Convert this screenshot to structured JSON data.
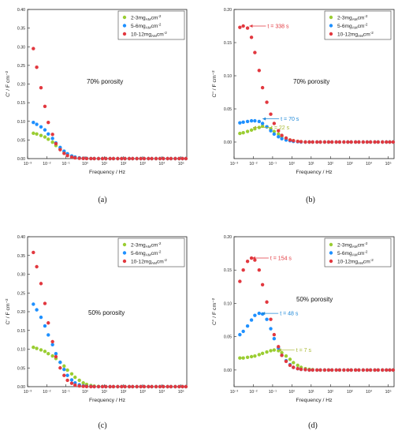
{
  "chart_data": [
    {
      "type": "scatter",
      "panel_label": "(a)",
      "xlabel": "Frequency / Hz",
      "ylabel": "C' / F cm⁻²",
      "xscale": "log",
      "xlim": [
        0.001,
        200000
      ],
      "ylim": [
        0,
        0.4
      ],
      "x_ticks": [
        0.001,
        0.01,
        0.1,
        1,
        10,
        100,
        1000,
        10000,
        100000
      ],
      "x_tick_labels": [
        "10⁻³",
        "10⁻²",
        "10⁻¹",
        "10⁰",
        "10¹",
        "10²",
        "10³",
        "10⁴",
        "10⁵"
      ],
      "y_ticks": [
        0,
        0.05,
        0.1,
        0.15,
        0.2,
        0.25,
        0.3,
        0.35,
        0.4
      ],
      "y_tick_labels": [
        "0.00",
        "0.05",
        "0.10",
        "0.15",
        "0.20",
        "0.25",
        "0.30",
        "0.35",
        "0.40"
      ],
      "annotation": "70% porosity",
      "legend_position": "top-right",
      "x": [
        0.002,
        0.003,
        0.005,
        0.008,
        0.012,
        0.02,
        0.03,
        0.05,
        0.08,
        0.12,
        0.2,
        0.3,
        0.5,
        0.8,
        1.2,
        2,
        3,
        5,
        8,
        12,
        20,
        30,
        50,
        80,
        120,
        200,
        300,
        500,
        800,
        1200,
        2000,
        3000,
        5000,
        8000,
        12000,
        20000,
        30000,
        50000,
        80000,
        120000,
        180000
      ],
      "series": [
        {
          "name": "2-3mg",
          "values": [
            0.068,
            0.066,
            0.062,
            0.058,
            0.052,
            0.044,
            0.035,
            0.026,
            0.018,
            0.012,
            0.007,
            0.004,
            0.002,
            0.001,
            0.0005,
            0.0002,
            0.0001,
            0,
            0,
            0,
            0,
            0,
            0,
            0,
            0,
            0,
            0,
            0,
            0,
            0,
            0,
            0,
            0,
            0,
            0,
            0,
            0,
            0,
            0,
            0,
            0
          ]
        },
        {
          "name": "5-6mg",
          "values": [
            0.097,
            0.092,
            0.085,
            0.077,
            0.066,
            0.054,
            0.042,
            0.03,
            0.02,
            0.013,
            0.007,
            0.004,
            0.002,
            0.001,
            0.0005,
            0.0002,
            0.0001,
            0,
            0,
            0,
            0,
            0,
            0,
            0,
            0,
            0,
            0,
            0,
            0,
            0,
            0,
            0,
            0,
            0,
            0,
            0,
            0,
            0,
            0,
            0,
            0
          ]
        },
        {
          "name": "10-12mg",
          "values": [
            0.295,
            0.245,
            0.19,
            0.14,
            0.097,
            0.065,
            0.04,
            0.024,
            0.014,
            0.008,
            0.004,
            0.002,
            0.001,
            0.0005,
            0.0002,
            0.0001,
            0,
            0,
            0,
            0,
            0,
            0,
            0,
            0,
            0,
            0,
            0,
            0,
            0,
            0,
            0,
            0,
            0,
            0,
            0,
            0,
            0,
            0,
            0,
            0,
            0
          ]
        }
      ]
    },
    {
      "type": "scatter",
      "panel_label": "(b)",
      "xlabel": "Frequency / Hz",
      "ylabel": "C\" / F cm⁻²",
      "xscale": "log",
      "xlim": [
        0.001,
        200000
      ],
      "ylim": [
        -0.025,
        0.2
      ],
      "x_ticks": [
        0.001,
        0.01,
        0.1,
        1,
        10,
        100,
        1000,
        10000,
        100000
      ],
      "x_tick_labels": [
        "10⁻³",
        "10⁻²",
        "10⁻¹",
        "10⁰",
        "10¹",
        "10²",
        "10³",
        "10⁴",
        "10⁵"
      ],
      "y_ticks": [
        0,
        0.05,
        0.1,
        0.15,
        0.2
      ],
      "y_tick_labels": [
        "0.00",
        "0.05",
        "0.10",
        "0.15",
        "0.20"
      ],
      "annotation": "70% porosity",
      "legend_position": "top-right",
      "time_labels": [
        {
          "text": "t = 338 s",
          "series": "10-12mg",
          "x": 0.0047,
          "y": 0.175
        },
        {
          "text": "t = 70 s",
          "series": "5-6mg",
          "x": 0.0227,
          "y": 0.035
        },
        {
          "text": "t = 22 s",
          "series": "2-3mg",
          "x": 0.0072,
          "y": 0.022
        }
      ],
      "x": [
        0.002,
        0.003,
        0.005,
        0.008,
        0.012,
        0.02,
        0.03,
        0.05,
        0.08,
        0.12,
        0.2,
        0.3,
        0.5,
        0.8,
        1.2,
        2,
        3,
        5,
        8,
        12,
        20,
        30,
        50,
        80,
        120,
        200,
        300,
        500,
        800,
        1200,
        2000,
        3000,
        5000,
        8000,
        12000,
        20000,
        30000,
        50000,
        80000,
        120000,
        180000
      ],
      "series": [
        {
          "name": "2-3mg",
          "values": [
            0.013,
            0.014,
            0.016,
            0.018,
            0.02,
            0.022,
            0.024,
            0.023,
            0.02,
            0.016,
            0.012,
            0.008,
            0.005,
            0.003,
            0.002,
            0.001,
            0.0005,
            0,
            0,
            0,
            0,
            0,
            0,
            0,
            0,
            0,
            0,
            0,
            0,
            0,
            0,
            0,
            0,
            0,
            0,
            0,
            0,
            0,
            0,
            0,
            0
          ]
        },
        {
          "name": "5-6mg",
          "values": [
            0.029,
            0.03,
            0.031,
            0.032,
            0.032,
            0.031,
            0.028,
            0.023,
            0.017,
            0.012,
            0.008,
            0.005,
            0.003,
            0.002,
            0.001,
            0.0005,
            0,
            0,
            0,
            0,
            0,
            0,
            0,
            0,
            0,
            0,
            0,
            0,
            0,
            0,
            0,
            0,
            0,
            0,
            0,
            0,
            0,
            0,
            0,
            0,
            0
          ]
        },
        {
          "name": "10-12mg",
          "values": [
            0.173,
            0.175,
            0.172,
            0.158,
            0.135,
            0.108,
            0.082,
            0.06,
            0.042,
            0.028,
            0.017,
            0.01,
            0.006,
            0.003,
            0.002,
            0.001,
            0.0005,
            0,
            0,
            0,
            0,
            0,
            0,
            0,
            0,
            0,
            0,
            0,
            0,
            0,
            0,
            0,
            0,
            0,
            0,
            0,
            0,
            0,
            0,
            0,
            0
          ]
        }
      ]
    },
    {
      "type": "scatter",
      "panel_label": "(c)",
      "xlabel": "Frequency / Hz",
      "ylabel": "C' / F cm⁻²",
      "xscale": "log",
      "xlim": [
        0.001,
        200000
      ],
      "ylim": [
        0,
        0.4
      ],
      "x_ticks": [
        0.001,
        0.01,
        0.1,
        1,
        10,
        100,
        1000,
        10000,
        100000
      ],
      "x_tick_labels": [
        "10⁻³",
        "10⁻²",
        "10⁻¹",
        "10⁰",
        "10¹",
        "10²",
        "10³",
        "10⁴",
        "10⁵"
      ],
      "y_ticks": [
        0,
        0.05,
        0.1,
        0.15,
        0.2,
        0.25,
        0.3,
        0.35,
        0.4
      ],
      "y_tick_labels": [
        "0.00",
        "0.05",
        "0.10",
        "0.15",
        "0.20",
        "0.25",
        "0.30",
        "0.35",
        "0.40"
      ],
      "annotation": "50% porosity",
      "legend_position": "top-right",
      "x": [
        0.002,
        0.003,
        0.005,
        0.008,
        0.012,
        0.02,
        0.03,
        0.05,
        0.08,
        0.12,
        0.2,
        0.3,
        0.5,
        0.8,
        1.2,
        2,
        3,
        5,
        8,
        12,
        20,
        30,
        50,
        80,
        120,
        200,
        300,
        500,
        800,
        1200,
        2000,
        3000,
        5000,
        8000,
        12000,
        20000,
        30000,
        50000,
        80000,
        120000,
        180000
      ],
      "series": [
        {
          "name": "2-3mg",
          "values": [
            0.105,
            0.102,
            0.098,
            0.094,
            0.088,
            0.082,
            0.075,
            0.065,
            0.055,
            0.044,
            0.034,
            0.025,
            0.017,
            0.01,
            0.006,
            0.003,
            0.0015,
            0.0007,
            0.0003,
            0,
            0,
            0,
            0,
            0,
            0,
            0,
            0,
            0,
            0,
            0,
            0,
            0,
            0,
            0,
            0,
            0,
            0,
            0,
            0,
            0,
            0
          ]
        },
        {
          "name": "5-6mg",
          "values": [
            0.22,
            0.205,
            0.185,
            0.162,
            0.138,
            0.112,
            0.088,
            0.065,
            0.046,
            0.03,
            0.018,
            0.01,
            0.005,
            0.002,
            0.001,
            0.0005,
            0,
            0,
            0,
            0,
            0,
            0,
            0,
            0,
            0,
            0,
            0,
            0,
            0,
            0,
            0,
            0,
            0,
            0,
            0,
            0,
            0,
            0,
            0,
            0,
            0
          ]
        },
        {
          "name": "10-12mg",
          "values": [
            0.358,
            0.32,
            0.275,
            0.222,
            0.17,
            0.12,
            0.08,
            0.05,
            0.03,
            0.017,
            0.009,
            0.004,
            0.002,
            0.001,
            0.0005,
            0,
            0,
            0,
            0,
            0,
            0,
            0,
            0,
            0,
            0,
            0,
            0,
            0,
            0,
            0,
            0,
            0,
            0,
            0,
            0,
            0,
            0,
            0,
            0,
            0,
            0
          ]
        }
      ]
    },
    {
      "type": "scatter",
      "panel_label": "(d)",
      "xlabel": "Frequency / Hz",
      "ylabel": "C\" / F cm⁻²",
      "xscale": "log",
      "xlim": [
        0.001,
        200000
      ],
      "ylim": [
        -0.025,
        0.2
      ],
      "x_ticks": [
        0.001,
        0.01,
        0.1,
        1,
        10,
        100,
        1000,
        10000,
        100000
      ],
      "x_tick_labels": [
        "10⁻³",
        "10⁻²",
        "10⁻¹",
        "10⁰",
        "10¹",
        "10²",
        "10³",
        "10⁴",
        "10⁵"
      ],
      "y_ticks": [
        0,
        0.05,
        0.1,
        0.15,
        0.2
      ],
      "y_tick_labels": [
        "0.00",
        "0.05",
        "0.10",
        "0.15",
        "0.20"
      ],
      "annotation": "50% porosity",
      "legend_position": "top-right",
      "time_labels": [
        {
          "text": "t = 154 s",
          "series": "10-12mg",
          "x": 0.0065,
          "y": 0.168
        },
        {
          "text": "t = 48 s",
          "series": "5-6mg",
          "x": 0.0208,
          "y": 0.085
        },
        {
          "text": "t = 7 s",
          "series": "2-3mg",
          "x": 0.143,
          "y": 0.03
        }
      ],
      "x": [
        0.002,
        0.003,
        0.005,
        0.008,
        0.012,
        0.02,
        0.03,
        0.05,
        0.08,
        0.12,
        0.2,
        0.3,
        0.5,
        0.8,
        1.2,
        2,
        3,
        5,
        8,
        12,
        20,
        30,
        50,
        80,
        120,
        200,
        300,
        500,
        800,
        1200,
        2000,
        3000,
        5000,
        8000,
        12000,
        20000,
        30000,
        50000,
        80000,
        120000,
        180000
      ],
      "series": [
        {
          "name": "2-3mg",
          "values": [
            0.018,
            0.018,
            0.019,
            0.02,
            0.021,
            0.023,
            0.025,
            0.027,
            0.029,
            0.03,
            0.029,
            0.026,
            0.021,
            0.016,
            0.011,
            0.007,
            0.004,
            0.002,
            0.001,
            0.0005,
            0,
            0,
            0,
            0,
            0,
            0,
            0,
            0,
            0,
            0,
            0,
            0,
            0,
            0,
            0,
            0,
            0,
            0,
            0,
            0,
            0
          ]
        },
        {
          "name": "5-6mg",
          "values": [
            0.053,
            0.058,
            0.066,
            0.075,
            0.082,
            0.085,
            0.084,
            0.076,
            0.062,
            0.047,
            0.033,
            0.022,
            0.014,
            0.008,
            0.004,
            0.002,
            0.001,
            0.0005,
            0,
            0,
            0,
            0,
            0,
            0,
            0,
            0,
            0,
            0,
            0,
            0,
            0,
            0,
            0,
            0,
            0,
            0,
            0,
            0,
            0,
            0,
            0
          ]
        },
        {
          "name": "10-12mg",
          "values": [
            0.133,
            0.15,
            0.163,
            0.168,
            0.165,
            0.15,
            0.128,
            0.102,
            0.076,
            0.053,
            0.035,
            0.022,
            0.013,
            0.007,
            0.004,
            0.002,
            0.001,
            0.0005,
            0,
            0,
            0,
            0,
            0,
            0,
            0,
            0,
            0,
            0,
            0,
            0,
            0,
            0,
            0,
            0,
            0,
            0,
            0,
            0,
            0,
            0,
            0
          ]
        }
      ]
    }
  ],
  "legend": {
    "items": [
      {
        "name": "2-3mg",
        "pre": "2-3mg",
        "sub": "AM",
        "post": "cm",
        "sup": "-2"
      },
      {
        "name": "5-6mg",
        "pre": "5-6mg",
        "sub": "AM",
        "post": "cm",
        "sup": "-2"
      },
      {
        "name": "10-12mg",
        "pre": "10-12mg",
        "sub": "AM",
        "post": "cm",
        "sup": "-2"
      }
    ]
  },
  "colors": {
    "2-3mg": "#9acd32",
    "5-6mg": "#1e90ff",
    "10-12mg": "#e2383f",
    "ann_2-3mg": "#a8b832",
    "ann_5-6mg": "#1e88d8",
    "ann_10-12mg": "#e2383f"
  }
}
